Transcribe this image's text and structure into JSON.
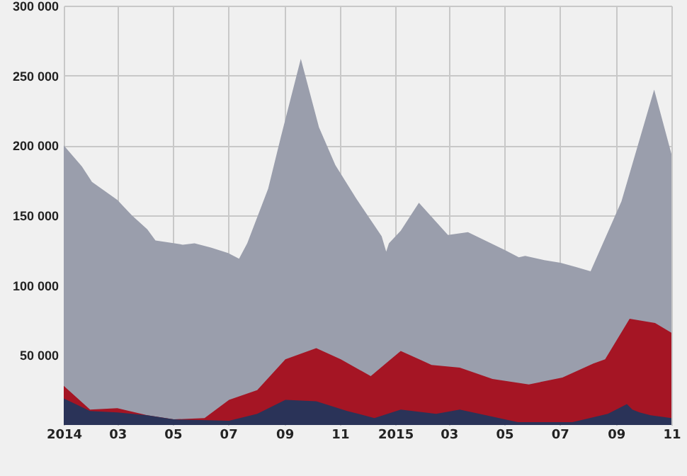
{
  "chart_data": {
    "type": "area",
    "xlim": [
      "2014-01-01",
      "2015-11-01"
    ],
    "xticks": [
      {
        "value": "2014-01-01",
        "label": "2014"
      },
      {
        "value": "2014-03-01",
        "label": "03"
      },
      {
        "value": "2014-05-01",
        "label": "05"
      },
      {
        "value": "2014-07-01",
        "label": "07"
      },
      {
        "value": "2014-09-01",
        "label": "09"
      },
      {
        "value": "2014-11-01",
        "label": "11"
      },
      {
        "value": "2015-01-01",
        "label": "2015"
      },
      {
        "value": "2015-03-01",
        "label": "03"
      },
      {
        "value": "2015-05-01",
        "label": "05"
      },
      {
        "value": "2015-07-01",
        "label": "07"
      },
      {
        "value": "2015-09-01",
        "label": "09"
      },
      {
        "value": "2015-11-01",
        "label": "11"
      }
    ],
    "ylim": [
      0,
      300000
    ],
    "yticks": [
      {
        "value": 50000,
        "label": "50 000"
      },
      {
        "value": 100000,
        "label": "100 000"
      },
      {
        "value": 150000,
        "label": "150 000"
      },
      {
        "value": 200000,
        "label": "200 000"
      },
      {
        "value": 250000,
        "label": "250 000"
      },
      {
        "value": 300000,
        "label": "300 000"
      }
    ],
    "grid": true,
    "series": [
      {
        "color": "#9a9eac",
        "x": [
          "2014-01-01",
          "2014-01-21",
          "2014-02-01",
          "2014-03-01",
          "2014-03-17",
          "2014-04-03",
          "2014-04-12",
          "2014-05-03",
          "2014-05-12",
          "2014-05-25",
          "2014-06-12",
          "2014-07-01",
          "2014-07-13",
          "2014-07-22",
          "2014-08-14",
          "2014-08-28",
          "2014-09-19",
          "2014-10-09",
          "2014-10-27",
          "2014-11-19",
          "2014-12-17",
          "2014-12-22",
          "2014-12-25",
          "2015-01-07",
          "2015-01-27",
          "2015-02-28",
          "2015-03-22",
          "2015-05-02",
          "2015-05-17",
          "2015-05-24",
          "2015-06-14",
          "2015-07-02",
          "2015-07-19",
          "2015-08-04",
          "2015-09-07",
          "2015-10-13",
          "2015-11-01"
        ],
        "values": [
          200000,
          185000,
          174000,
          161000,
          150000,
          140000,
          132000,
          130000,
          129000,
          130000,
          127000,
          123000,
          119000,
          130000,
          169000,
          206000,
          262000,
          213000,
          186000,
          162000,
          135000,
          124000,
          130000,
          139000,
          159000,
          136000,
          138000,
          125000,
          120000,
          121000,
          118000,
          116000,
          113000,
          110000,
          160000,
          240000,
          194000
        ]
      },
      {
        "color": "#a51524",
        "x": [
          "2014-01-01",
          "2014-01-30",
          "2014-03-01",
          "2014-04-03",
          "2014-05-02",
          "2014-06-05",
          "2014-07-02",
          "2014-08-02",
          "2014-09-02",
          "2014-10-06",
          "2014-11-02",
          "2014-12-05",
          "2015-01-07",
          "2015-02-10",
          "2015-03-13",
          "2015-04-18",
          "2015-05-28",
          "2015-07-04",
          "2015-08-07",
          "2015-08-20",
          "2015-09-16",
          "2015-10-14",
          "2015-11-01"
        ],
        "values": [
          28000,
          11000,
          12000,
          7000,
          4000,
          5000,
          18000,
          25000,
          47000,
          55000,
          47000,
          35000,
          53000,
          43000,
          41000,
          33000,
          29000,
          34000,
          44000,
          47000,
          76000,
          73000,
          66000
        ]
      },
      {
        "color": "#2a3358",
        "x": [
          "2014-01-01",
          "2014-01-30",
          "2014-03-01",
          "2014-04-03",
          "2014-05-02",
          "2014-07-02",
          "2014-08-02",
          "2014-09-02",
          "2014-10-06",
          "2014-11-09",
          "2014-12-09",
          "2015-01-07",
          "2015-02-15",
          "2015-03-13",
          "2015-05-16",
          "2015-07-15",
          "2015-08-23",
          "2015-09-13",
          "2015-09-19",
          "2015-09-27",
          "2015-10-09",
          "2015-11-01"
        ],
        "values": [
          19000,
          10000,
          9000,
          7000,
          4000,
          3000,
          8000,
          18000,
          17000,
          10000,
          5000,
          11000,
          8000,
          11000,
          2000,
          2000,
          8000,
          15000,
          11000,
          9000,
          7000,
          5000
        ]
      }
    ]
  }
}
